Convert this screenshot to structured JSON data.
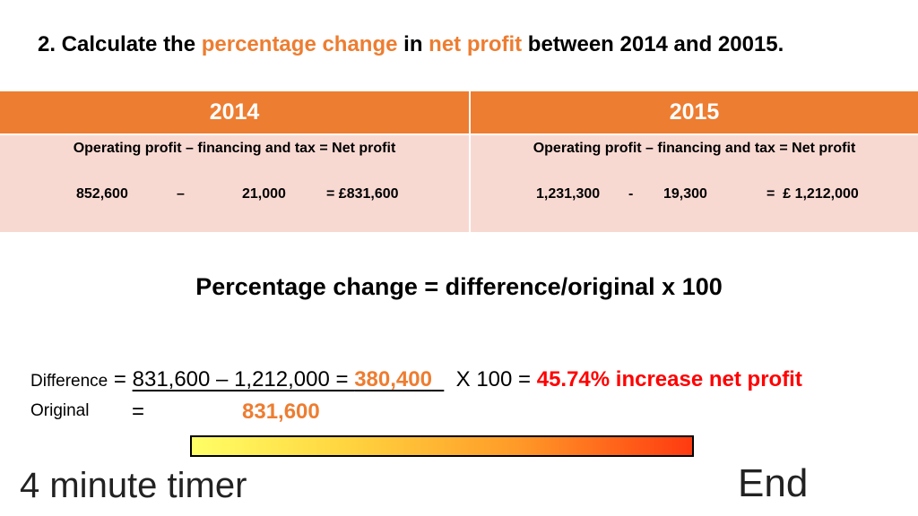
{
  "question": {
    "prefix": "2. Calculate the ",
    "highlight1": "percentage change",
    "mid": " in ",
    "highlight2": "net profit",
    "suffix": " between 2014 and 20015."
  },
  "table": {
    "headers": [
      "2014",
      "2015"
    ],
    "formula": "Operating profit – financing and tax = Net profit",
    "col2014": {
      "operating": "852,600",
      "op": "–",
      "financing": "21,000",
      "result": "= £831,600"
    },
    "col2015": {
      "operating": "1,231,300",
      "op": "-",
      "financing": "19,300",
      "result": "=  £ 1,212,000"
    }
  },
  "formula_title": "Percentage change = difference/original x 100",
  "working": {
    "difference_label": "Difference",
    "eq1": " = ",
    "difference_expr": "831,600 – 1,212,000 = ",
    "difference_value": "380,400",
    "times": "X   100 = ",
    "result": "45.74% increase net profit",
    "original_label": "Original",
    "eq2": "=",
    "original_value": "831,600"
  },
  "timer": {
    "label": "4 minute timer",
    "end_label": "End"
  },
  "colors": {
    "accent": "#ed7d31",
    "header_bg": "#ed7d31",
    "cell_bg": "#f8d9d2",
    "result": "#ff0000"
  }
}
